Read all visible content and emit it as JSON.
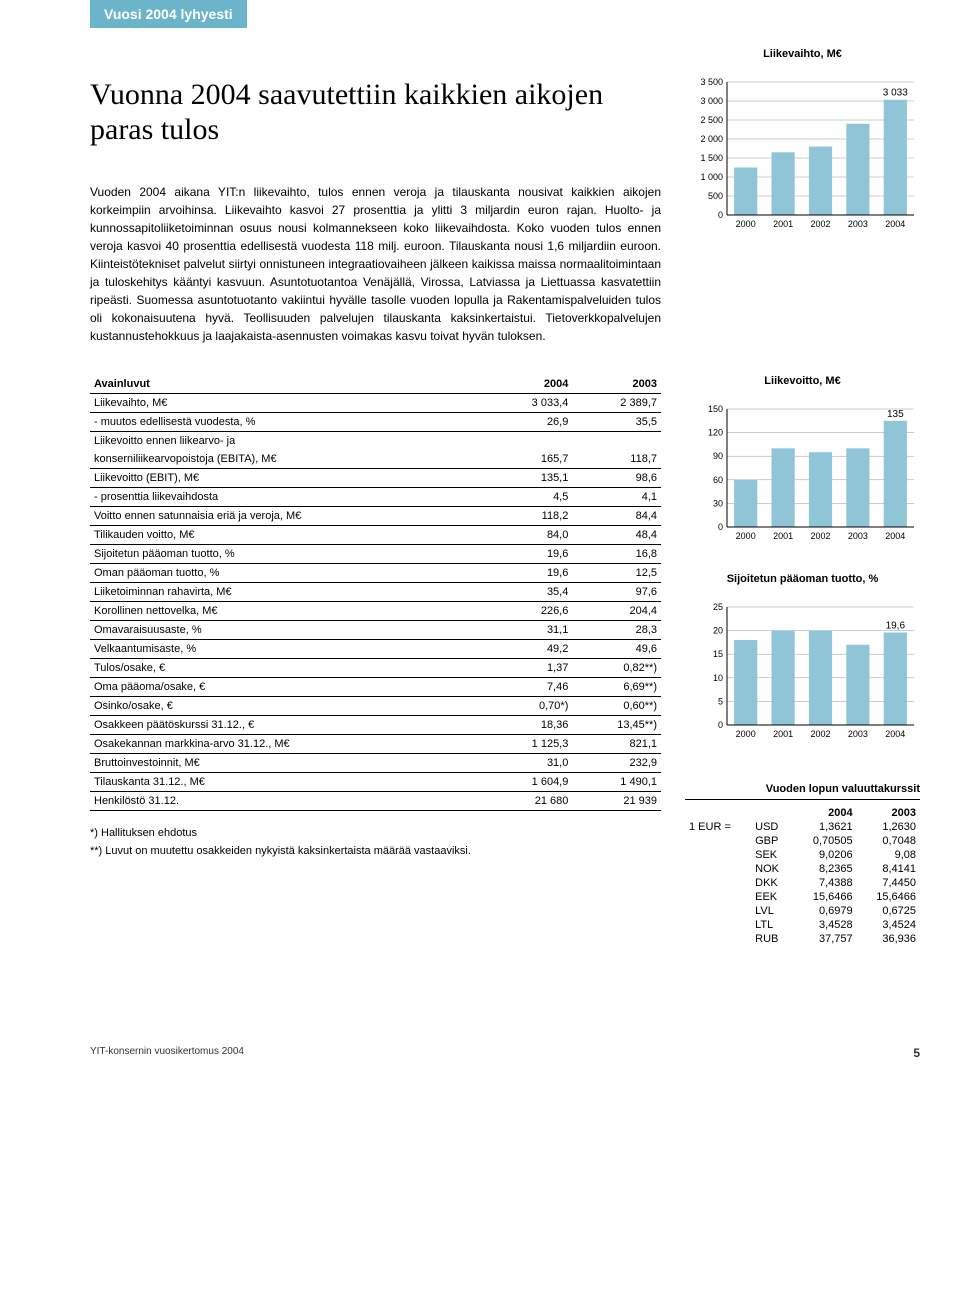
{
  "tab": "Vuosi 2004 lyhyesti",
  "headline": "Vuonna 2004 saavutettiin kaikkien aikojen paras tulos",
  "body_text": "Vuoden 2004 aikana YIT:n liikevaihto, tulos ennen veroja ja tilauskanta nousivat kaikkien aikojen korkeimpiin arvoihinsa. Liikevaihto kasvoi 27 prosenttia ja ylitti 3 miljardin euron rajan. Huolto- ja kunnossapitoliiketoiminnan osuus nousi kolmannekseen koko liikevaihdosta. Koko vuoden tulos ennen veroja kasvoi 40 prosenttia edellisestä vuodesta 118 milj. euroon. Tilauskanta nousi 1,6 miljardiin euroon. Kiinteistötekniset palvelut siirtyi onnistuneen integraatiovaiheen jälkeen kaikissa maissa normaalitoimintaan ja tuloskehitys kääntyi kasvuun. Asuntotuotantoa Venäjällä, Virossa, Latviassa ja Liettuassa kasvatettiin ripeästi. Suomessa asuntotuotanto vakiintui hyvälle tasolle vuoden lopulla ja Rakentamispalveluiden tulos oli kokonaisuutena hyvä. Teollisuuden palvelujen tilauskanta kaksinkertaistui. Tietoverkkopalvelujen kustannustehokkuus ja laajakaista-asennusten voimakas kasvu toivat hyvän tuloksen.",
  "charts": {
    "revenue": {
      "title": "Liikevaihto, M€",
      "categories": [
        "2000",
        "2001",
        "2002",
        "2003",
        "2004"
      ],
      "values": [
        1250,
        1650,
        1800,
        2400,
        3033
      ],
      "callout": "3 033",
      "y_ticks": [
        "0",
        "500",
        "1 000",
        "1 500",
        "2 000",
        "2 500",
        "3 000",
        "3 500"
      ],
      "ylim": [
        0,
        3500
      ],
      "bar_color": "#8fc5d6",
      "grid_color": "#999999",
      "axis_color": "#000000",
      "font_size": 9
    },
    "ebit": {
      "title": "Liikevoitto, M€",
      "categories": [
        "2000",
        "2001",
        "2002",
        "2003",
        "2004"
      ],
      "values": [
        60,
        100,
        95,
        100,
        135
      ],
      "callout": "135",
      "y_ticks": [
        "0",
        "30",
        "60",
        "90",
        "120",
        "150"
      ],
      "ylim": [
        0,
        150
      ],
      "bar_color": "#8fc5d6",
      "grid_color": "#999999",
      "axis_color": "#000000",
      "font_size": 9
    },
    "roi": {
      "title": "Sijoitetun pääoman tuotto, %",
      "categories": [
        "2000",
        "2001",
        "2002",
        "2003",
        "2004"
      ],
      "values": [
        18,
        20,
        20,
        17,
        19.6
      ],
      "callout": "19,6",
      "y_ticks": [
        "0",
        "5",
        "10",
        "15",
        "20",
        "25"
      ],
      "ylim": [
        0,
        25
      ],
      "bar_color": "#8fc5d6",
      "grid_color": "#999999",
      "axis_color": "#000000",
      "font_size": 9
    }
  },
  "table": {
    "header": {
      "c0": "Avainluvut",
      "c1": "2004",
      "c2": "2003"
    },
    "rows": [
      {
        "label": "Liikevaihto, M€",
        "v1": "3 033,4",
        "v2": "2 389,7"
      },
      {
        "label": "- muutos edellisestä vuodesta, %",
        "v1": "26,9",
        "v2": "35,5"
      },
      {
        "label": "Liikevoitto ennen liikearvo- ja",
        "noborder": true
      },
      {
        "label": "konserniliikearvopoistoja (EBITA), M€",
        "v1": "165,7",
        "v2": "118,7"
      },
      {
        "label": "Liikevoitto (EBIT), M€",
        "v1": "135,1",
        "v2": "98,6"
      },
      {
        "label": "- prosenttia liikevaihdosta",
        "v1": "4,5",
        "v2": "4,1"
      },
      {
        "label": "Voitto ennen satunnaisia eriä ja veroja, M€",
        "v1": "118,2",
        "v2": "84,4"
      },
      {
        "label": "Tilikauden voitto, M€",
        "v1": "84,0",
        "v2": "48,4"
      },
      {
        "label": "Sijoitetun pääoman tuotto, %",
        "v1": "19,6",
        "v2": "16,8"
      },
      {
        "label": "Oman pääoman tuotto, %",
        "v1": "19,6",
        "v2": "12,5"
      },
      {
        "label": "Liiketoiminnan rahavirta, M€",
        "v1": "35,4",
        "v2": "97,6"
      },
      {
        "label": "Korollinen nettovelka, M€",
        "v1": "226,6",
        "v2": "204,4"
      },
      {
        "label": "Omavaraisuusaste, %",
        "v1": "31,1",
        "v2": "28,3"
      },
      {
        "label": "Velkaantumisaste, %",
        "v1": "49,2",
        "v2": "49,6"
      },
      {
        "label": "Tulos/osake, €",
        "v1": "1,37",
        "v2": "0,82**)"
      },
      {
        "label": "Oma pääoma/osake, €",
        "v1": "7,46",
        "v2": "6,69**)"
      },
      {
        "label": "Osinko/osake, €",
        "v1": "0,70*)",
        "v2": "0,60**)"
      },
      {
        "label": "Osakkeen päätöskurssi 31.12., €",
        "v1": "18,36",
        "v2": "13,45**)"
      },
      {
        "label": "Osakekannan markkina-arvo 31.12., M€",
        "v1": "1 125,3",
        "v2": "821,1"
      },
      {
        "label": "Bruttoinvestoinnit, M€",
        "v1": "31,0",
        "v2": "232,9"
      },
      {
        "label": "Tilauskanta 31.12., M€",
        "v1": "1 604,9",
        "v2": "1 490,1"
      },
      {
        "label": "Henkilöstö 31.12.",
        "v1": "21 680",
        "v2": "21 939"
      }
    ],
    "note1": "*) Hallituksen ehdotus",
    "note2": "**) Luvut on muutettu osakkeiden nykyistä kaksinkertaista määrää vastaaviksi."
  },
  "fx": {
    "title": "Vuoden lopun valuuttakurssit",
    "prefix": "1 EUR =",
    "header": {
      "c1": "2004",
      "c2": "2003"
    },
    "rows": [
      {
        "cur": "USD",
        "v1": "1,3621",
        "v2": "1,2630"
      },
      {
        "cur": "GBP",
        "v1": "0,70505",
        "v2": "0,7048"
      },
      {
        "cur": "SEK",
        "v1": "9,0206",
        "v2": "9,08"
      },
      {
        "cur": "NOK",
        "v1": "8,2365",
        "v2": "8,4141"
      },
      {
        "cur": "DKK",
        "v1": "7,4388",
        "v2": "7,4450"
      },
      {
        "cur": "EEK",
        "v1": "15,6466",
        "v2": "15,6466"
      },
      {
        "cur": "LVL",
        "v1": "0,6979",
        "v2": "0,6725"
      },
      {
        "cur": "LTL",
        "v1": "3,4528",
        "v2": "3,4524"
      },
      {
        "cur": "RUB",
        "v1": "37,757",
        "v2": "36,936"
      }
    ]
  },
  "footer": {
    "left": "YIT-konsernin vuosikertomus 2004",
    "page": "5"
  }
}
